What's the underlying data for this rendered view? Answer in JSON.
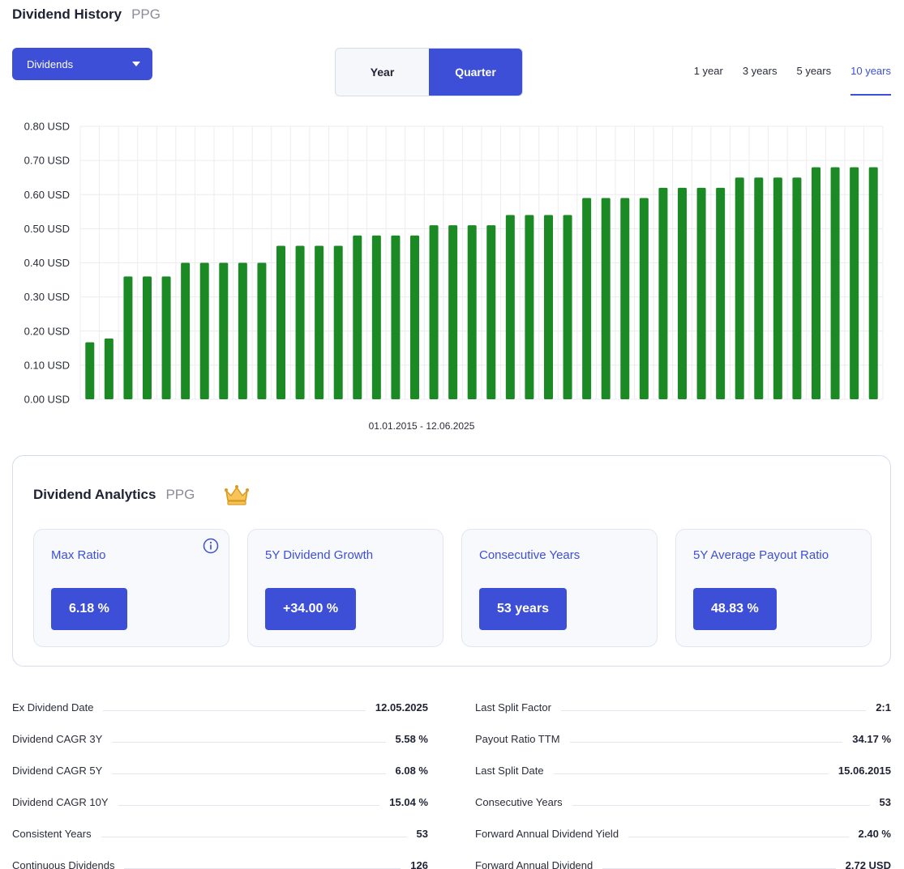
{
  "header": {
    "title": "Dividend History",
    "ticker": "PPG"
  },
  "dropdown": {
    "selected": "Dividends"
  },
  "period_toggle": {
    "options": [
      "Year",
      "Quarter"
    ],
    "active": "Quarter"
  },
  "ranges": {
    "options": [
      "1 year",
      "3 years",
      "5 years",
      "10 years"
    ],
    "active": "10 years"
  },
  "colors": {
    "accent": "#3d4fd6",
    "bar": "#1b8a25"
  },
  "chart_data": {
    "type": "bar",
    "title": "",
    "xlabel": "01.01.2015 - 12.06.2025",
    "ylabel": "",
    "ylim": [
      0,
      0.8
    ],
    "yticks": [
      "0.00 USD",
      "0.10 USD",
      "0.20 USD",
      "0.30 USD",
      "0.40 USD",
      "0.50 USD",
      "0.60 USD",
      "0.70 USD",
      "0.80 USD"
    ],
    "grid": true,
    "values": [
      0.167,
      0.178,
      0.36,
      0.36,
      0.36,
      0.4,
      0.4,
      0.4,
      0.4,
      0.4,
      0.45,
      0.45,
      0.45,
      0.45,
      0.48,
      0.48,
      0.48,
      0.48,
      0.51,
      0.51,
      0.51,
      0.51,
      0.54,
      0.54,
      0.54,
      0.54,
      0.59,
      0.59,
      0.59,
      0.59,
      0.62,
      0.62,
      0.62,
      0.62,
      0.65,
      0.65,
      0.65,
      0.65,
      0.68,
      0.68,
      0.68,
      0.68
    ]
  },
  "analytics": {
    "title": "Dividend Analytics",
    "ticker": "PPG",
    "cards": [
      {
        "label": "Max Ratio",
        "value": "6.18 %"
      },
      {
        "label": "5Y Dividend Growth",
        "value": "+34.00 %"
      },
      {
        "label": "Consecutive Years",
        "value": "53 years"
      },
      {
        "label": "5Y Average Payout Ratio",
        "value": "48.83 %"
      }
    ]
  },
  "stats_left": [
    {
      "label": "Ex Dividend Date",
      "value": "12.05.2025"
    },
    {
      "label": "Dividend CAGR 3Y",
      "value": "5.58 %"
    },
    {
      "label": "Dividend CAGR 5Y",
      "value": "6.08 %"
    },
    {
      "label": "Dividend CAGR 10Y",
      "value": "15.04 %"
    },
    {
      "label": "Consistent Years",
      "value": "53"
    },
    {
      "label": "Continuous Dividends",
      "value": "126"
    }
  ],
  "stats_right": [
    {
      "label": "Last Split Factor",
      "value": "2:1"
    },
    {
      "label": "Payout Ratio TTM",
      "value": "34.17 %"
    },
    {
      "label": "Last Split Date",
      "value": "15.06.2015"
    },
    {
      "label": "Consecutive Years",
      "value": "53"
    },
    {
      "label": "Forward Annual Dividend Yield",
      "value": "2.40 %"
    },
    {
      "label": "Forward Annual Dividend",
      "value": "2.72 USD"
    }
  ]
}
